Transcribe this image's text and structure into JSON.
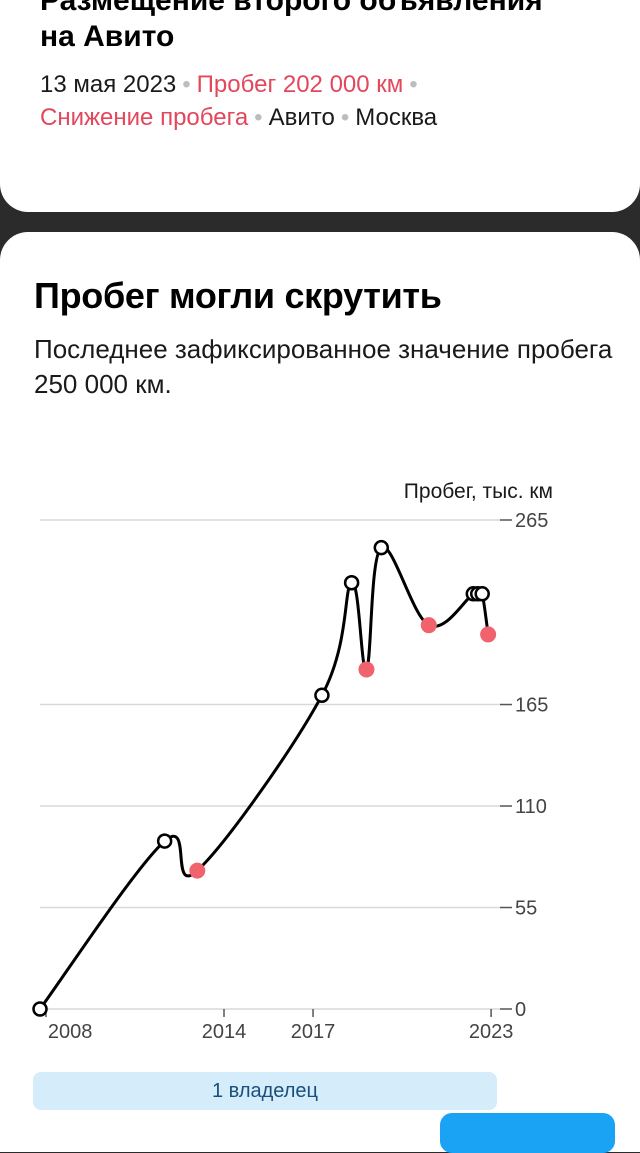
{
  "previous_card": {
    "title_line1": "Размещение второго объявления",
    "title_line2": "на Авито",
    "date": "13 мая 2023",
    "mileage": "Пробег 202 000 км",
    "decrease": "Снижение пробега",
    "source": "Авито",
    "city": "Москва"
  },
  "section": {
    "title": "Пробег могли скрутить",
    "subtitle": "Последнее зафиксированное значение пробега 250 000 км."
  },
  "owners": {
    "label": "1 владелец"
  },
  "colors": {
    "line": "#000000",
    "normal_point": "#ffffff",
    "decrease_point": "#f0626c",
    "grid": "#d9d9d9"
  },
  "chart_data": {
    "type": "line",
    "title": "",
    "ylabel": "Пробег, тыс. км",
    "xlabel": "",
    "ylim": [
      0,
      265
    ],
    "yticks": [
      0,
      55,
      110,
      165,
      265
    ],
    "xlim": [
      2007.8,
      2023.3
    ],
    "xticks": [
      "2008",
      "2014",
      "2017",
      "2023"
    ],
    "grid": true,
    "series": [
      {
        "points": [
          {
            "x": 2007.8,
            "y": 0,
            "decrease": false
          },
          {
            "x": 2012.0,
            "y": 91,
            "decrease": false
          },
          {
            "x": 2013.1,
            "y": 75,
            "decrease": true
          },
          {
            "x": 2017.3,
            "y": 170,
            "decrease": false
          },
          {
            "x": 2018.3,
            "y": 231,
            "decrease": false
          },
          {
            "x": 2018.8,
            "y": 184,
            "decrease": true
          },
          {
            "x": 2019.3,
            "y": 250,
            "decrease": false
          },
          {
            "x": 2020.9,
            "y": 208,
            "decrease": true
          },
          {
            "x": 2022.4,
            "y": 225,
            "decrease": false
          },
          {
            "x": 2022.55,
            "y": 225,
            "decrease": false
          },
          {
            "x": 2022.7,
            "y": 225,
            "decrease": false
          },
          {
            "x": 2022.9,
            "y": 203,
            "decrease": true
          }
        ]
      }
    ]
  }
}
